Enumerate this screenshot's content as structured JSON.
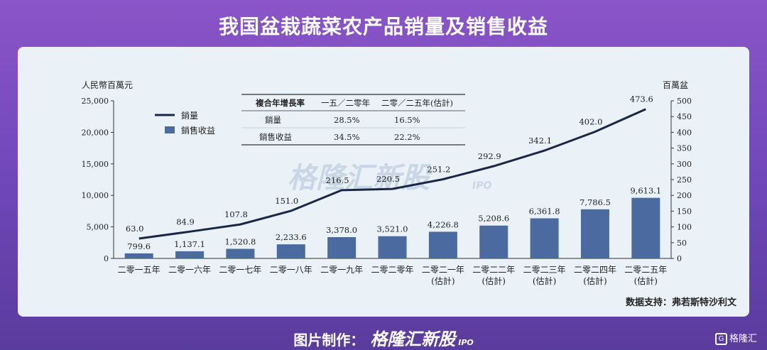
{
  "header": {
    "title": "我国盆栽蔬菜农产品销量及销售收益"
  },
  "footer": {
    "label": "图片制作：",
    "brand": "格隆汇新股",
    "ipo": "IPO",
    "corner_brand": "格隆汇"
  },
  "watermark": {
    "brand": "格隆汇新股",
    "ipo": "IPO"
  },
  "source": "数据支持：弗若斯特沙利文",
  "legend": {
    "line": "銷量",
    "bar": "銷售收益"
  },
  "cagr_table": {
    "header": [
      "複合年增長率",
      "一五／二零年",
      "二零／二五年(估計)"
    ],
    "rows": [
      [
        "銷量",
        "28.5%",
        "16.5%"
      ],
      [
        "銷售收益",
        "34.5%",
        "22.2%"
      ]
    ]
  },
  "chart_data": {
    "type": "bar",
    "categories": [
      "二零一五年",
      "二零一六年",
      "二零一七年",
      "二零一八年",
      "二零一九年",
      "二零二零年",
      "二零二一年",
      "二零二二年",
      "二零二三年",
      "二零二四年",
      "二零二五年"
    ],
    "category_notes": [
      "",
      "",
      "",
      "",
      "",
      "",
      "(估計)",
      "(估計)",
      "(估計)",
      "(估計)",
      "(估計)"
    ],
    "series": [
      {
        "name": "銷售收益",
        "type": "bar",
        "axis": "left",
        "color": "#4a6aa0",
        "values": [
          799.6,
          1137.1,
          1520.8,
          2233.6,
          3378.0,
          3521.0,
          4226.8,
          5208.6,
          6361.8,
          7786.5,
          9613.1
        ],
        "labels": [
          "799.6",
          "1,137.1",
          "1,520.8",
          "2,233.6",
          "3,378.0",
          "3,521.0",
          "4,226.8",
          "5,208.6",
          "6,361.8",
          "7,786.5",
          "9,613.1"
        ]
      },
      {
        "name": "銷量",
        "type": "line",
        "axis": "right",
        "color": "#1a2748",
        "values": [
          63.0,
          84.9,
          107.8,
          151.0,
          216.5,
          220.5,
          251.2,
          292.9,
          342.1,
          402.0,
          473.6
        ],
        "labels": [
          "63.0",
          "84.9",
          "107.8",
          "151.0",
          "216.5",
          "220.5",
          "251.2",
          "292.9",
          "342.1",
          "402.0",
          "473.6"
        ]
      }
    ],
    "y_left": {
      "label": "人民幣百萬元",
      "min": 0,
      "max": 25000,
      "ticks": [
        0,
        5000,
        10000,
        15000,
        20000,
        25000
      ],
      "tick_labels": [
        "0",
        "5,000",
        "10,000",
        "15,000",
        "20,000",
        "25,000"
      ]
    },
    "y_right": {
      "label": "百萬盆",
      "min": 0,
      "max": 500,
      "ticks": [
        0,
        50,
        100,
        150,
        200,
        250,
        300,
        350,
        400,
        450,
        500
      ],
      "tick_labels": [
        "0",
        "50",
        "100",
        "150",
        "200",
        "250",
        "300",
        "350",
        "400",
        "450",
        "500"
      ]
    },
    "grid": false,
    "legend_position": "top-left"
  }
}
